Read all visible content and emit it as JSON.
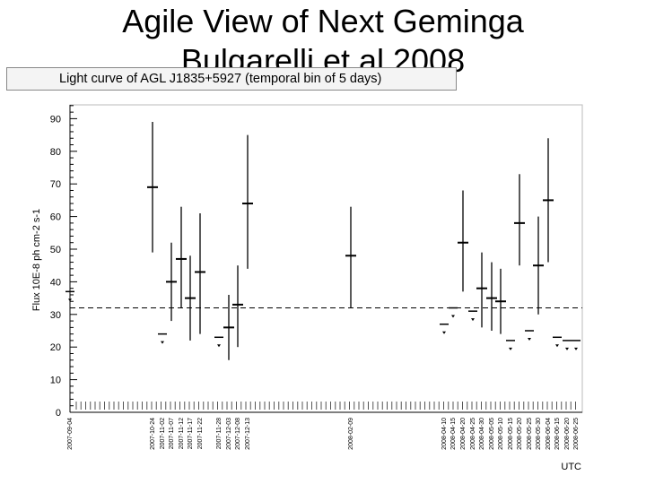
{
  "slide": {
    "title_line1": "Agile View of  Next Geminga",
    "title_line2": "Bulgarelli et al 2008"
  },
  "chart_data": {
    "type": "scatter",
    "title": "Light curve of AGL J1835+5927 (temporal bin of 5 days)",
    "ylabel": "Flux 10E-8 ph cm-2 s-1",
    "xlabel": "UTC",
    "ylim": [
      0,
      95
    ],
    "yticks": [
      0,
      10,
      20,
      30,
      40,
      50,
      60,
      70,
      80,
      90
    ],
    "threshold": 32,
    "grid": false,
    "date_labels": [
      "2007-09-04",
      "2007-10-24",
      "2007-11-02",
      "2007-11-07",
      "2007-11-12",
      "2007-11-17",
      "2007-11-22",
      "2007-11-28",
      "2007-12-03",
      "2007-12-08",
      "2007-12-13",
      "2008-02-09",
      "2008-04-10",
      "2008-04-15",
      "2008-04-20",
      "2008-04-25",
      "2008-04-30",
      "2008-05-05",
      "2008-05-10",
      "2008-05-15",
      "2008-05-20",
      "2008-05-25",
      "2008-05-30",
      "2008-06-04",
      "2008-06-15",
      "2008-06-20",
      "2008-06-25"
    ],
    "detections": [
      {
        "date": "2007-10-24",
        "value": 69,
        "low": 49,
        "high": 89
      },
      {
        "date": "2007-11-07",
        "value": 40,
        "low": 28,
        "high": 52
      },
      {
        "date": "2007-11-12",
        "value": 47,
        "low": 32,
        "high": 63
      },
      {
        "date": "2007-11-17",
        "value": 35,
        "low": 22,
        "high": 48
      },
      {
        "date": "2007-11-22",
        "value": 43,
        "low": 24,
        "high": 61
      },
      {
        "date": "2007-12-03",
        "value": 26,
        "low": 16,
        "high": 36
      },
      {
        "date": "2007-12-08",
        "value": 33,
        "low": 20,
        "high": 45
      },
      {
        "date": "2007-12-13",
        "value": 64,
        "low": 44,
        "high": 85
      },
      {
        "date": "2008-02-09",
        "value": 48,
        "low": 32,
        "high": 63
      },
      {
        "date": "2008-04-20",
        "value": 52,
        "low": 37,
        "high": 68
      },
      {
        "date": "2008-04-30",
        "value": 38,
        "low": 26,
        "high": 49
      },
      {
        "date": "2008-05-05",
        "value": 35,
        "low": 25,
        "high": 46
      },
      {
        "date": "2008-05-10",
        "value": 34,
        "low": 24,
        "high": 44
      },
      {
        "date": "2008-05-20",
        "value": 58,
        "low": 45,
        "high": 73
      },
      {
        "date": "2008-05-30",
        "value": 45,
        "low": 30,
        "high": 60
      },
      {
        "date": "2008-06-04",
        "value": 65,
        "low": 46,
        "high": 84
      }
    ],
    "upper_limits": [
      {
        "date": "2007-09-04",
        "value": 37
      },
      {
        "date": "2007-11-02",
        "value": 24
      },
      {
        "date": "2007-11-28",
        "value": 23
      },
      {
        "date": "2008-04-10",
        "value": 27
      },
      {
        "date": "2008-04-15",
        "value": 32
      },
      {
        "date": "2008-04-25",
        "value": 31
      },
      {
        "date": "2008-05-15",
        "value": 22
      },
      {
        "date": "2008-05-25",
        "value": 25
      },
      {
        "date": "2008-06-15",
        "value": 23
      },
      {
        "date": "2008-06-20",
        "value": 22
      },
      {
        "date": "2008-06-25",
        "value": 22
      }
    ]
  }
}
